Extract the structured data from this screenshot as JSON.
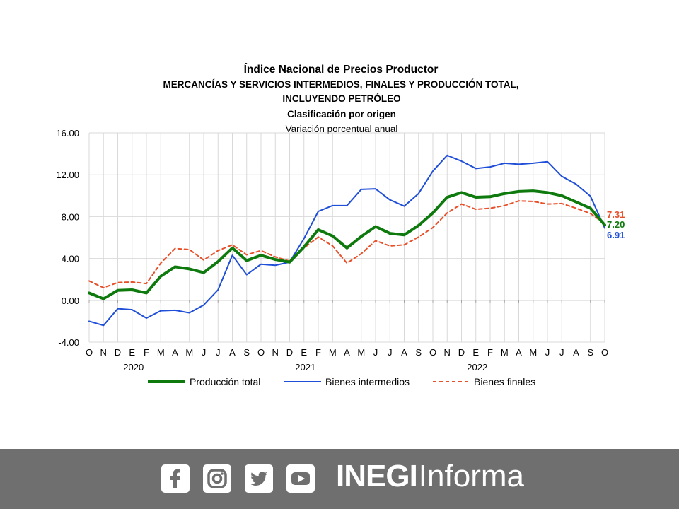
{
  "chart_data": {
    "type": "line",
    "title_lines": [
      "Índice Nacional de Precios Productor",
      "MERCANCÍAS Y SERVICIOS INTERMEDIOS, FINALES Y PRODUCCIÓN TOTAL,",
      "INCLUYENDO PETRÓLEO",
      "Clasificación por origen",
      "Variación porcentual anual"
    ],
    "x": [
      "O",
      "N",
      "D",
      "E",
      "F",
      "M",
      "A",
      "M",
      "J",
      "J",
      "A",
      "S",
      "O",
      "N",
      "D",
      "E",
      "F",
      "M",
      "A",
      "M",
      "J",
      "J",
      "A",
      "S",
      "O",
      "N",
      "D",
      "E",
      "F",
      "M",
      "A",
      "M",
      "J",
      "J",
      "A",
      "S",
      "O"
    ],
    "years": [
      {
        "label": "2020",
        "index": 3
      },
      {
        "label": "2021",
        "index": 15
      },
      {
        "label": "2022",
        "index": 27
      }
    ],
    "y_ticks": [
      "16.00",
      "12.00",
      "8.00",
      "4.00",
      "0.00",
      "-4.00"
    ],
    "ylim": [
      -4,
      16
    ],
    "grid": true,
    "legend_position": "bottom",
    "series": [
      {
        "name": "Producción total",
        "color": "#0e7a0d",
        "style": "solid",
        "width": 4,
        "values": [
          0.7,
          0.15,
          0.95,
          1.0,
          0.7,
          2.3,
          3.2,
          3.0,
          2.65,
          3.7,
          5.0,
          3.8,
          4.3,
          3.9,
          3.65,
          5.1,
          6.75,
          6.15,
          5.0,
          6.1,
          7.05,
          6.4,
          6.25,
          7.15,
          8.35,
          9.85,
          10.3,
          9.85,
          9.9,
          10.2,
          10.4,
          10.45,
          10.3,
          10.0,
          9.4,
          8.8,
          7.2
        ],
        "end_label": "7.20"
      },
      {
        "name": "Bienes intermedios",
        "color": "#1f4fd8",
        "style": "solid",
        "width": 2,
        "values": [
          -2.0,
          -2.4,
          -0.8,
          -0.9,
          -1.7,
          -1.0,
          -0.95,
          -1.2,
          -0.45,
          1.0,
          4.3,
          2.45,
          3.45,
          3.35,
          3.65,
          5.9,
          8.5,
          9.05,
          9.05,
          10.6,
          10.65,
          9.6,
          9.0,
          10.2,
          12.35,
          13.85,
          13.3,
          12.6,
          12.75,
          13.1,
          13.0,
          13.1,
          13.25,
          11.85,
          11.1,
          9.95,
          6.91
        ],
        "end_label": "6.91"
      },
      {
        "name": "Bienes finales",
        "color": "#e8502a",
        "style": "dashed",
        "width": 2,
        "values": [
          1.85,
          1.2,
          1.7,
          1.75,
          1.6,
          3.55,
          4.95,
          4.85,
          3.85,
          4.75,
          5.3,
          4.35,
          4.75,
          4.15,
          3.75,
          5.0,
          6.05,
          5.2,
          3.55,
          4.45,
          5.7,
          5.2,
          5.3,
          6.05,
          6.95,
          8.35,
          9.2,
          8.7,
          8.8,
          9.05,
          9.5,
          9.45,
          9.2,
          9.25,
          8.8,
          8.3,
          7.31
        ],
        "end_label": "7.31"
      }
    ]
  },
  "footer": {
    "social_icons": [
      "facebook-icon",
      "instagram-icon",
      "twitter-icon",
      "youtube-icon"
    ],
    "brand_bold": "INEGI",
    "brand_light": "Informa",
    "background": "#6f6f6f"
  }
}
